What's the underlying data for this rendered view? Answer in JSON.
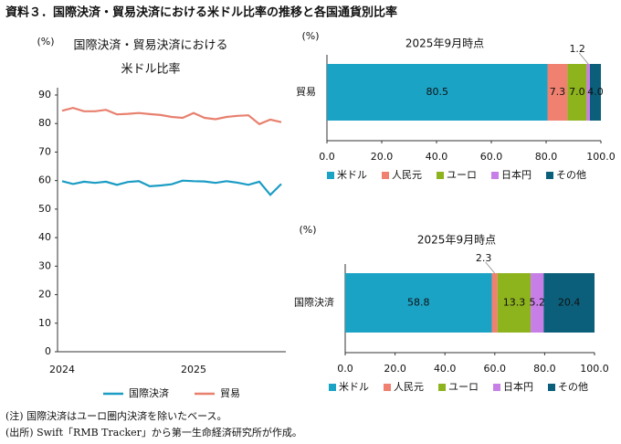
{
  "title": "資料３．国際決済・貿易決済における米ドル比率の推移と各国通貨別比率",
  "notes": [
    "(注) 国際決済はユーロ圏内決済を除いたベース。",
    "(出所) Swift「RMB Tracker」から第一生命経済研究所が作成。"
  ],
  "chart_data": [
    {
      "type": "line",
      "title": [
        "国際決済・貿易決済における",
        "米ドル比率"
      ],
      "y_label": "(%)",
      "categories": [
        "2024",
        null,
        null,
        null,
        null,
        null,
        null,
        null,
        null,
        null,
        null,
        null,
        "2025",
        null,
        null,
        null,
        null,
        null,
        null,
        null,
        null
      ],
      "series": [
        {
          "name": "国際決済",
          "color": "#1b9cc4",
          "values": [
            59.8,
            58.8,
            59.6,
            59.2,
            59.6,
            58.5,
            59.5,
            59.8,
            58.0,
            58.3,
            58.7,
            60.0,
            59.8,
            59.7,
            59.2,
            59.8,
            59.3,
            58.5,
            59.6,
            55.0,
            58.8
          ]
        },
        {
          "name": "貿易",
          "color": "#e8806e",
          "values": [
            84.5,
            85.5,
            84.3,
            84.3,
            84.8,
            83.2,
            83.4,
            83.7,
            83.3,
            83.0,
            82.3,
            82.0,
            83.7,
            82.0,
            81.5,
            82.3,
            82.7,
            82.9,
            79.8,
            81.4,
            80.5
          ]
        }
      ],
      "ylim": [
        0,
        90
      ],
      "yticks": [
        0,
        10,
        20,
        30,
        40,
        50,
        60,
        70,
        80,
        90
      ],
      "grid": false,
      "legend": "bottom"
    },
    {
      "type": "stacked-hbar",
      "title": "2025年9月時点",
      "y_label": "(%)",
      "categories": [
        "貿易"
      ],
      "series": [
        {
          "name": "米ドル",
          "color": "#1ba3c6",
          "values": [
            80.5
          ],
          "value_labels": [
            "80.5"
          ]
        },
        {
          "name": "人民元",
          "color": "#f08070",
          "values": [
            7.3
          ],
          "value_labels": [
            "7.3"
          ]
        },
        {
          "name": "ユーロ",
          "color": "#8db31d",
          "values": [
            7.0
          ],
          "value_labels": [
            "7.0"
          ]
        },
        {
          "name": "日本円",
          "color": "#c77ee6",
          "values": [
            1.2
          ],
          "value_labels": [
            "1.2"
          ]
        },
        {
          "name": "その他",
          "color": "#0b5f7a",
          "values": [
            4.0
          ],
          "value_labels": [
            "4.0"
          ]
        }
      ],
      "xlim": [
        0,
        100
      ],
      "xticks": [
        {
          "value": 0,
          "label": "0.0"
        },
        {
          "value": 20,
          "label": "20.0"
        },
        {
          "value": 40,
          "label": "40.0"
        },
        {
          "value": 60,
          "label": "60.0"
        },
        {
          "value": 80,
          "label": "80.0"
        },
        {
          "value": 100,
          "label": "100.0"
        }
      ],
      "legend": "bottom"
    },
    {
      "type": "stacked-hbar",
      "title": "2025年9月時点",
      "y_label": "(%)",
      "categories": [
        "国際決済"
      ],
      "series": [
        {
          "name": "米ドル",
          "color": "#1ba3c6",
          "values": [
            58.8
          ],
          "value_labels": [
            "58.8"
          ]
        },
        {
          "name": "人民元",
          "color": "#f08070",
          "values": [
            2.3
          ],
          "value_labels": [
            "2.3"
          ]
        },
        {
          "name": "ユーロ",
          "color": "#8db31d",
          "values": [
            13.3
          ],
          "value_labels": [
            "13.3"
          ]
        },
        {
          "name": "日本円",
          "color": "#c77ee6",
          "values": [
            5.2
          ],
          "value_labels": [
            "5.2"
          ]
        },
        {
          "name": "その他",
          "color": "#0b5f7a",
          "values": [
            20.4
          ],
          "value_labels": [
            "20.4"
          ]
        }
      ],
      "xlim": [
        0,
        100
      ],
      "xticks": [
        {
          "value": 0,
          "label": "0.0"
        },
        {
          "value": 20,
          "label": "20.0"
        },
        {
          "value": 40,
          "label": "40.0"
        },
        {
          "value": 60,
          "label": "60.0"
        },
        {
          "value": 80,
          "label": "80.0"
        },
        {
          "value": 100,
          "label": "100.0"
        }
      ],
      "legend": "bottom"
    }
  ]
}
